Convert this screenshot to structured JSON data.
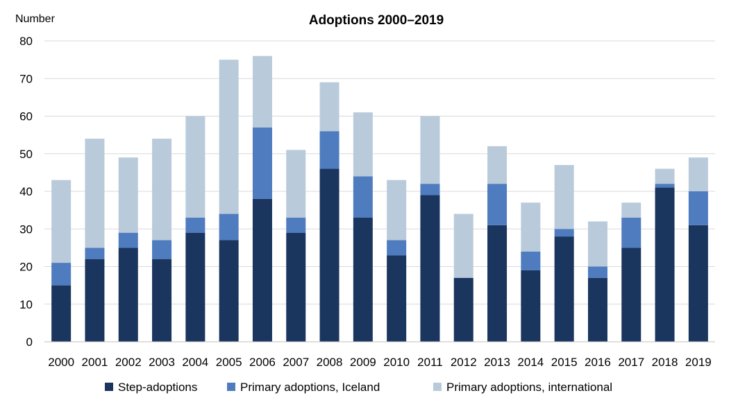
{
  "chart_data": {
    "type": "bar",
    "stacked": true,
    "title": "Adoptions 2000–2019",
    "ylabel": "Number",
    "xlabel": "",
    "ylim": [
      0,
      80
    ],
    "yticks": [
      0,
      10,
      20,
      30,
      40,
      50,
      60,
      70,
      80
    ],
    "grid": true,
    "legend_position": "bottom",
    "categories": [
      "2000",
      "2001",
      "2002",
      "2003",
      "2004",
      "2005",
      "2006",
      "2007",
      "2008",
      "2009",
      "2010",
      "2011",
      "2012",
      "2013",
      "2014",
      "2015",
      "2016",
      "2017",
      "2018",
      "2019"
    ],
    "series": [
      {
        "name": "Step-adoptions",
        "color": "#1a355e",
        "values": [
          15,
          22,
          25,
          22,
          29,
          27,
          38,
          29,
          46,
          33,
          23,
          39,
          17,
          31,
          19,
          28,
          17,
          25,
          41,
          31
        ]
      },
      {
        "name": "Primary adoptions, Iceland",
        "color": "#4f7bbf",
        "values": [
          6,
          3,
          4,
          5,
          4,
          7,
          19,
          4,
          10,
          11,
          4,
          3,
          0,
          11,
          5,
          2,
          3,
          8,
          1,
          9
        ]
      },
      {
        "name": "Primary adoptions, international",
        "color": "#b9cbdb",
        "values": [
          22,
          29,
          20,
          27,
          27,
          41,
          19,
          18,
          13,
          17,
          16,
          18,
          17,
          10,
          13,
          17,
          12,
          4,
          4,
          9
        ]
      }
    ]
  }
}
